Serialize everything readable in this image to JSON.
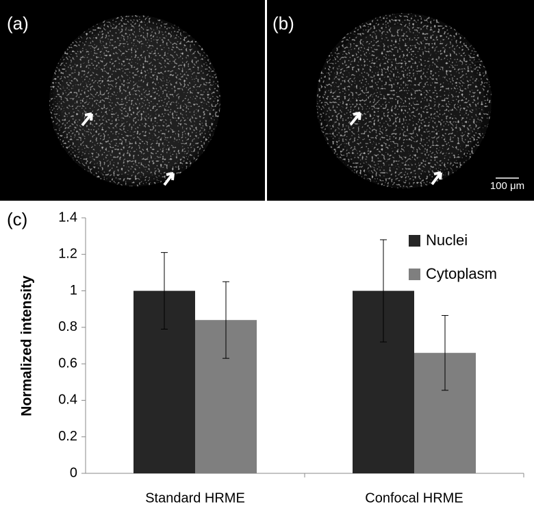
{
  "panel_labels": [
    "(a)",
    "(b)",
    "(c)"
  ],
  "scale_bar": "100 μm",
  "chart_data": {
    "type": "bar",
    "ylabel": "Normalized intensity",
    "categories": [
      "Standard HRME",
      "Confocal HRME"
    ],
    "series": [
      {
        "name": "Nuclei",
        "color": "#262626",
        "values": [
          1,
          1
        ],
        "errors": [
          0.21,
          0.28
        ]
      },
      {
        "name": "Cytoplasm",
        "color": "#7f7f7f",
        "values": [
          0.84,
          0.66
        ],
        "errors": [
          0.21,
          0.205
        ]
      }
    ],
    "ylim": [
      0,
      1.4
    ],
    "yticks": [
      0,
      0.2,
      0.4,
      0.6,
      0.8,
      1,
      1.2,
      1.4
    ],
    "legend": "upper-right"
  }
}
